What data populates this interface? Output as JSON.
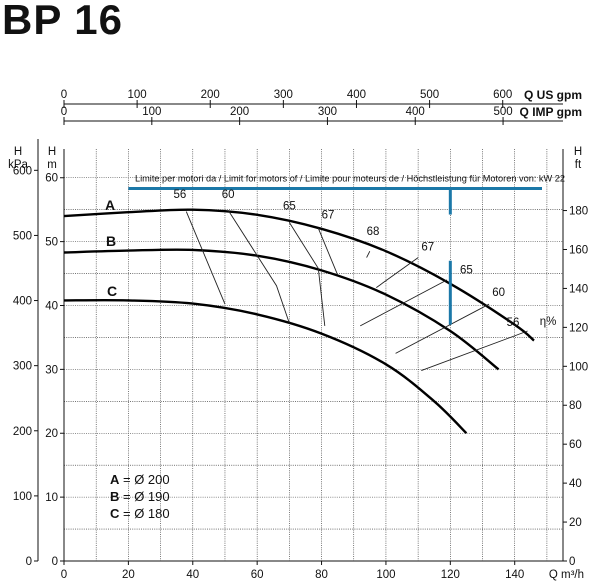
{
  "title": "BP 16",
  "chart_data": {
    "type": "line",
    "title": "BP 16",
    "top_axes": [
      {
        "label": "Q US gpm",
        "ticks": [
          0,
          100,
          200,
          300,
          400,
          500,
          600
        ],
        "per_m3h": 4.4029
      },
      {
        "label": "Q IMP gpm",
        "ticks": [
          0,
          100,
          200,
          300,
          400,
          500
        ],
        "per_m3h": 3.6662
      }
    ],
    "x_axis": {
      "label": "Q m³/h",
      "range": [
        0,
        155
      ],
      "ticks": [
        0,
        20,
        40,
        60,
        80,
        100,
        120,
        140
      ]
    },
    "y_axis_m": {
      "header": "H",
      "unit": "m",
      "range": [
        0,
        60
      ],
      "ticks": [
        0,
        10,
        20,
        30,
        40,
        50,
        60
      ]
    },
    "y_axis_kpa": {
      "header": "H",
      "unit": "kPa",
      "ticks": [
        0,
        100,
        200,
        300,
        400,
        500,
        600
      ],
      "per_m": 9.81
    },
    "y_axis_ft": {
      "header": "H",
      "unit": "ft",
      "ticks": [
        0,
        20,
        40,
        60,
        80,
        100,
        120,
        140,
        160,
        180
      ],
      "per_m": 3.28084
    },
    "grid": true,
    "efficiency_label": "η%",
    "motor_limit": {
      "text": "Limite per motori da / Limit for motors of / Limite pour moteurs de / Höchstleistung für Motoren von: kW 22",
      "y": 60.5,
      "x_range": [
        20,
        150
      ],
      "marker_x": 120,
      "color": "#1b78a8"
    },
    "operating_marker": {
      "x": 120,
      "y_range": [
        37,
        47
      ],
      "color": "#1b78a8"
    },
    "curves": [
      {
        "name": "A",
        "points": [
          [
            0,
            54.0
          ],
          [
            20,
            54.6
          ],
          [
            40,
            55.0
          ],
          [
            60,
            54.2
          ],
          [
            80,
            52.0
          ],
          [
            100,
            48.5
          ],
          [
            120,
            43.4
          ],
          [
            140,
            37.0
          ],
          [
            146,
            34.5
          ]
        ]
      },
      {
        "name": "B",
        "points": [
          [
            0,
            48.3
          ],
          [
            20,
            48.6
          ],
          [
            40,
            48.7
          ],
          [
            60,
            47.8
          ],
          [
            80,
            45.5
          ],
          [
            100,
            41.7
          ],
          [
            120,
            36.0
          ],
          [
            135,
            30.0
          ]
        ]
      },
      {
        "name": "C",
        "points": [
          [
            0,
            40.8
          ],
          [
            20,
            40.8
          ],
          [
            40,
            40.3
          ],
          [
            60,
            38.6
          ],
          [
            80,
            35.6
          ],
          [
            100,
            30.8
          ],
          [
            115,
            25.0
          ],
          [
            125,
            20.0
          ]
        ]
      }
    ],
    "efficiency_lines": [
      {
        "label": "56",
        "points": [
          [
            38,
            54.7
          ],
          [
            50,
            40.2
          ]
        ],
        "label_at": [
          36,
          56.8
        ]
      },
      {
        "label": "56",
        "points": [
          [
            111,
            29.8
          ],
          [
            144,
            36.0
          ]
        ]
      },
      {
        "label": "60",
        "points": [
          [
            51,
            54.9
          ],
          [
            66,
            43.1
          ],
          [
            70,
            37.2
          ]
        ],
        "label_at": [
          51,
          56.8
        ]
      },
      {
        "label": "60",
        "points": [
          [
            103,
            32.5
          ],
          [
            132,
            40.2
          ]
        ],
        "label_at": [
          135,
          41.5
        ]
      },
      {
        "label": "65",
        "points": [
          [
            70,
            53.0
          ],
          [
            79,
            45.8
          ],
          [
            81,
            36.8
          ]
        ],
        "label_at": [
          70,
          55.0
        ]
      },
      {
        "label": "65",
        "points": [
          [
            92,
            36.8
          ],
          [
            119,
            44.0
          ]
        ],
        "label_at": [
          125,
          45.0
        ]
      },
      {
        "label": "67",
        "points": [
          [
            79,
            52.1
          ],
          [
            85,
            44.8
          ]
        ],
        "label_at": [
          82,
          53.6
        ]
      },
      {
        "label": "67",
        "points": [
          [
            97,
            42.8
          ],
          [
            110,
            47.5
          ]
        ],
        "label_at": [
          113,
          48.6
        ]
      },
      {
        "label": "68",
        "points": [
          [
            95,
            48.5
          ],
          [
            94,
            47.5
          ]
        ],
        "label_at": [
          96,
          51.0
        ]
      }
    ],
    "legend": [
      "A = Ø 200",
      "B = Ø 190",
      "C = Ø 180"
    ]
  }
}
